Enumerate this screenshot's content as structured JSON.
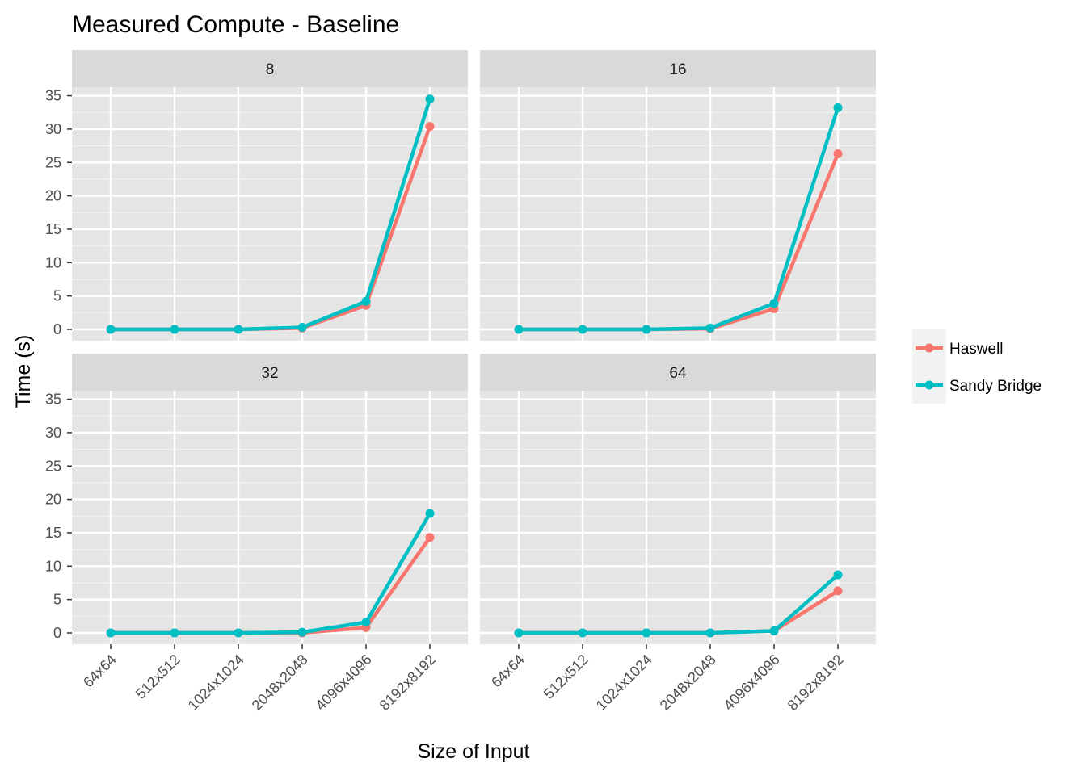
{
  "chart_data": {
    "type": "line",
    "title": "Measured Compute - Baseline",
    "xlabel": "Size of Input",
    "ylabel": "Time (s)",
    "categories": [
      "64x64",
      "512x512",
      "1024x1024",
      "2048x2048",
      "4096x4096",
      "8192x8192"
    ],
    "ylim": [
      -1.5,
      37
    ],
    "yticks": [
      0,
      5,
      10,
      15,
      20,
      25,
      30,
      35
    ],
    "grid": true,
    "legend_position": "right",
    "colors": {
      "Haswell": "#F8766D",
      "Sandy Bridge": "#00BFC4",
      "panel_bg": "#E5E5E5",
      "strip_bg": "#D9D9D9"
    },
    "panels": [
      {
        "label": "8",
        "series": [
          {
            "name": "Haswell",
            "values": [
              0,
              0,
              0,
              0.2,
              3.6,
              30.4
            ]
          },
          {
            "name": "Sandy Bridge",
            "values": [
              0,
              0,
              0,
              0.3,
              4.2,
              34.5
            ]
          }
        ]
      },
      {
        "label": "16",
        "series": [
          {
            "name": "Haswell",
            "values": [
              0,
              0,
              0,
              0.1,
              3.1,
              26.3
            ]
          },
          {
            "name": "Sandy Bridge",
            "values": [
              0,
              0,
              0,
              0.2,
              3.9,
              33.2
            ]
          }
        ]
      },
      {
        "label": "32",
        "series": [
          {
            "name": "Haswell",
            "values": [
              0,
              0,
              0,
              0,
              0.8,
              14.3
            ]
          },
          {
            "name": "Sandy Bridge",
            "values": [
              0,
              0,
              0,
              0.1,
              1.6,
              17.9
            ]
          }
        ]
      },
      {
        "label": "64",
        "series": [
          {
            "name": "Haswell",
            "values": [
              0,
              0,
              0,
              0,
              0.3,
              6.3
            ]
          },
          {
            "name": "Sandy Bridge",
            "values": [
              0,
              0,
              0,
              0,
              0.3,
              8.7
            ]
          }
        ]
      }
    ]
  }
}
